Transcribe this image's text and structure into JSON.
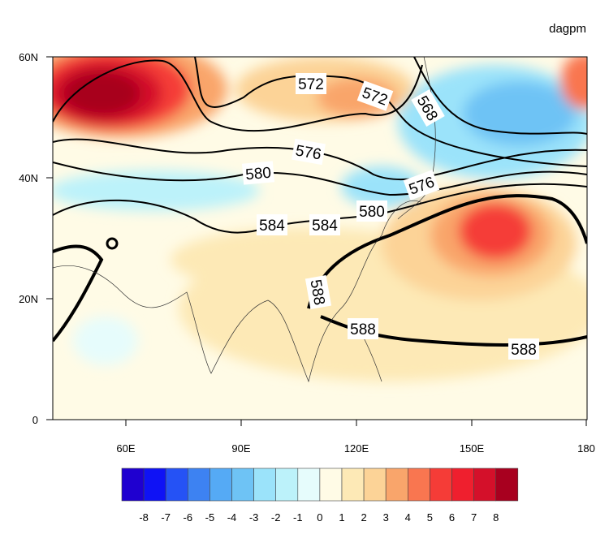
{
  "units": "dagpm",
  "lat_ticks": [
    "60N",
    "40N",
    "20N",
    "0"
  ],
  "lon_ticks": [
    "60E",
    "90E",
    "120E",
    "150E",
    "180"
  ],
  "contour_labels": [
    "572",
    "572",
    "568",
    "576",
    "580",
    "576",
    "580",
    "584",
    "584",
    "588",
    "588",
    "588"
  ],
  "colorbar": {
    "labels": [
      "-8",
      "-7",
      "-6",
      "-5",
      "-4",
      "-3",
      "-2",
      "-1",
      "0",
      "1",
      "2",
      "3",
      "4",
      "5",
      "6",
      "7",
      "8"
    ],
    "colors": [
      "#1f00d0",
      "#0f12f5",
      "#2552f5",
      "#3d82f2",
      "#55aaf5",
      "#6ec3f5",
      "#9be3fa",
      "#bcf2fa",
      "#e6fcfc",
      "#fffbe6",
      "#fde9b6",
      "#fcd397",
      "#f9a56b",
      "#f97650",
      "#f53c37",
      "#ef1f2e",
      "#d4102a",
      "#a8001f"
    ]
  }
}
